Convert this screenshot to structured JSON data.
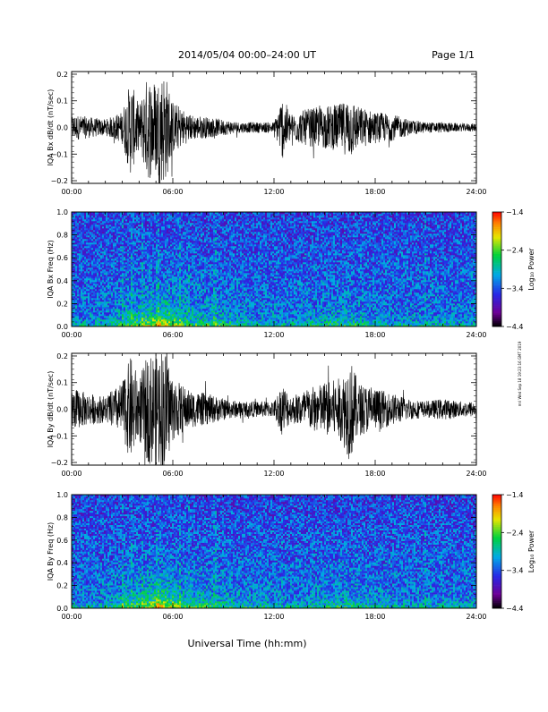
{
  "header": {
    "title": "2014/05/04  00:00–24:00 UT",
    "page": "Page 1/1"
  },
  "footer": {
    "xlabel": "Universal Time (hh:mm)",
    "side_note": "mri Wed Sep 18 19:23:16 GMT 2019"
  },
  "chart_data": [
    {
      "type": "line",
      "ylabel": "IQA Bx dB/dt (nT/sec)",
      "xlim": [
        0,
        24
      ],
      "ylim": [
        -0.21,
        0.21
      ],
      "x_tick_labels": [
        "00:00",
        "06:00",
        "12:00",
        "18:00",
        "24:00"
      ],
      "y_tick_labels": [
        "0.2",
        "0.1",
        "0.0",
        "−0.1",
        "−0.2"
      ],
      "y_ticks": [
        0.2,
        0.1,
        0.0,
        -0.1,
        -0.2
      ],
      "series": [
        {
          "x_hours": [
            0,
            1,
            2,
            3,
            3.5,
            4,
            4.5,
            5,
            5.5,
            6,
            7,
            8,
            9,
            10,
            11,
            12,
            12.5,
            13,
            14,
            15,
            16,
            16.5,
            17,
            18,
            19,
            20,
            21,
            22,
            23,
            24
          ],
          "amplitude": [
            0.05,
            0.04,
            0.03,
            0.06,
            0.18,
            0.08,
            0.2,
            0.18,
            0.22,
            0.1,
            0.05,
            0.04,
            0.03,
            0.02,
            0.02,
            0.02,
            0.12,
            0.05,
            0.07,
            0.08,
            0.09,
            0.12,
            0.08,
            0.06,
            0.05,
            0.03,
            0.02,
            0.02,
            0.015,
            0.015
          ],
          "color": "#000000"
        }
      ]
    },
    {
      "type": "heatmap",
      "ylabel": "IQA Bx Freq (Hz)",
      "xlim": [
        0,
        24
      ],
      "ylim": [
        0,
        1.0
      ],
      "x_tick_labels": [
        "00:00",
        "06:00",
        "12:00",
        "18:00",
        "24:00"
      ],
      "y_tick_labels": [
        "1.0",
        "0.8",
        "0.6",
        "0.4",
        "0.2",
        "0.0"
      ],
      "y_ticks": [
        1.0,
        0.8,
        0.6,
        0.4,
        0.2,
        0.0
      ],
      "colorbar_label": "Log₁₀ Power",
      "colorbar_range": [
        -4.4,
        -1.4
      ],
      "colorbar_ticks": [
        "−1.4",
        "−2.4",
        "−3.4",
        "−4.4"
      ],
      "colorbar_tick_values": [
        -1.4,
        -2.4,
        -3.4,
        -4.4
      ],
      "vertical_streak_hours": [
        3,
        3.6,
        4.2,
        5.1,
        6.4,
        7,
        8.5,
        21
      ]
    },
    {
      "type": "line",
      "ylabel": "IQA By dB/dt (nT/sec)",
      "xlim": [
        0,
        24
      ],
      "ylim": [
        -0.21,
        0.21
      ],
      "x_tick_labels": [
        "00:00",
        "06:00",
        "12:00",
        "18:00",
        "24:00"
      ],
      "y_tick_labels": [
        "0.2",
        "0.1",
        "0.0",
        "−0.1",
        "−0.2"
      ],
      "y_ticks": [
        0.2,
        0.1,
        0.0,
        -0.1,
        -0.2
      ],
      "series": [
        {
          "x_hours": [
            0,
            1,
            2,
            3,
            3.5,
            4,
            4.5,
            5,
            5.5,
            6,
            7,
            8,
            9,
            10,
            11,
            12,
            12.5,
            13,
            14,
            15,
            16,
            16.5,
            17,
            18,
            19,
            20,
            21,
            22,
            23,
            24
          ],
          "amplitude": [
            0.08,
            0.06,
            0.05,
            0.1,
            0.2,
            0.12,
            0.2,
            0.22,
            0.24,
            0.12,
            0.07,
            0.06,
            0.04,
            0.03,
            0.03,
            0.03,
            0.1,
            0.05,
            0.08,
            0.1,
            0.12,
            0.2,
            0.1,
            0.08,
            0.06,
            0.04,
            0.03,
            0.04,
            0.03,
            0.03
          ],
          "color": "#000000"
        }
      ]
    },
    {
      "type": "heatmap",
      "ylabel": "IQA By Freq (Hz)",
      "xlim": [
        0,
        24
      ],
      "ylim": [
        0,
        1.0
      ],
      "x_tick_labels": [
        "00:00",
        "06:00",
        "12:00",
        "18:00",
        "24:00"
      ],
      "y_tick_labels": [
        "1.0",
        "0.8",
        "0.6",
        "0.4",
        "0.2",
        "0.0"
      ],
      "y_ticks": [
        1.0,
        0.8,
        0.6,
        0.4,
        0.2,
        0.0
      ],
      "colorbar_label": "Log₁₀ Power",
      "colorbar_range": [
        -4.4,
        -1.4
      ],
      "colorbar_ticks": [
        "−1.4",
        "−2.4",
        "−3.4",
        "−4.4"
      ],
      "colorbar_tick_values": [
        -1.4,
        -2.4,
        -3.4,
        -4.4
      ],
      "vertical_streak_hours": [
        3,
        3.6,
        4.2,
        5.1,
        6.4,
        7,
        8.5,
        21
      ]
    }
  ]
}
